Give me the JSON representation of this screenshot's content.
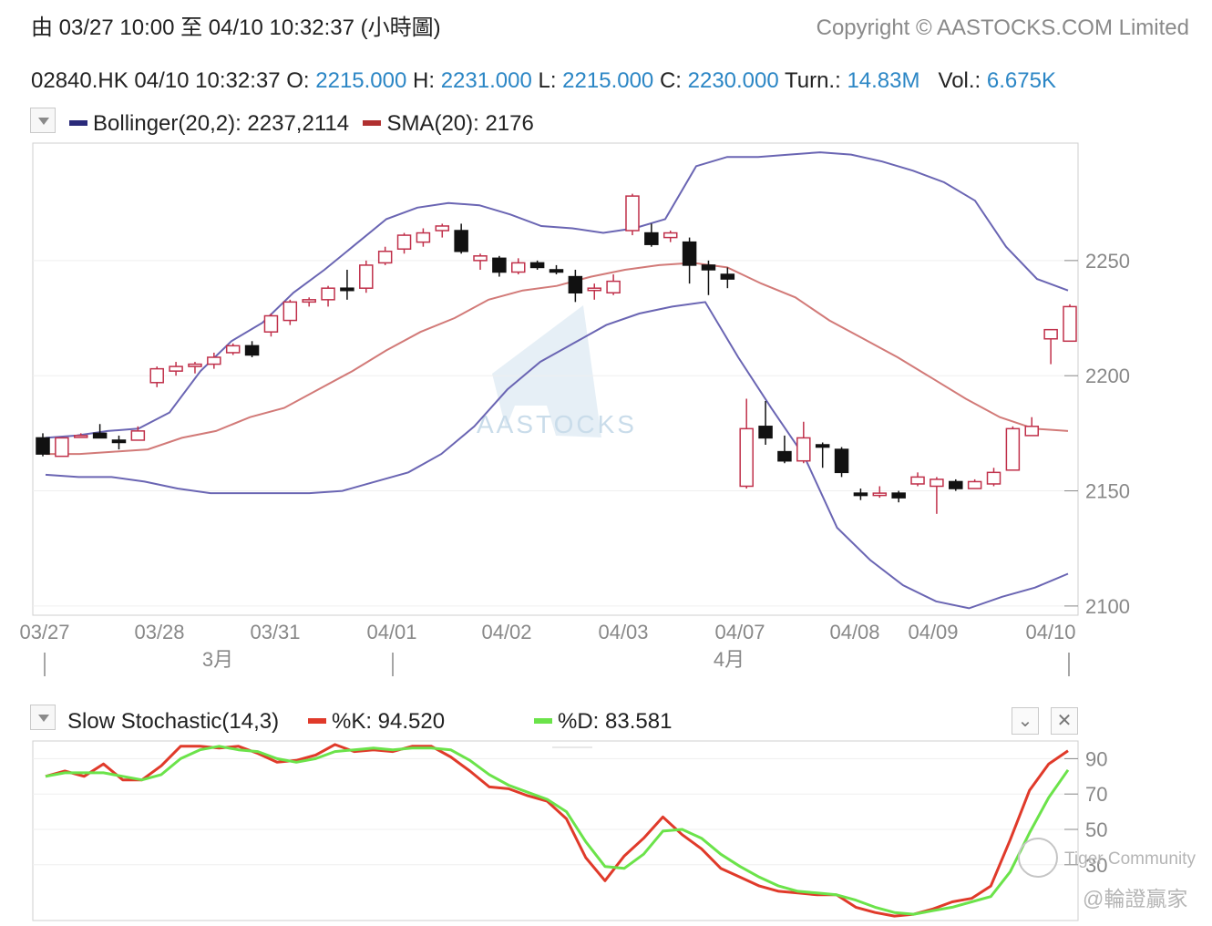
{
  "header": {
    "range_text": "由  03/27 10:00 至  04/10 10:32:37 (小時圖)",
    "copyright": "Copyright © AASTOCKS.COM Limited"
  },
  "quote": {
    "symbol_time": "02840.HK 04/10 10:32:37",
    "open_label": "O:",
    "open": "2215.000",
    "high_label": "H:",
    "high": "2231.000",
    "low_label": "L:",
    "low": "2215.000",
    "close_label": "C:",
    "close": "2230.000",
    "turnover_label": "Turn.:",
    "turnover": "14.83M",
    "volume_label": "Vol.:",
    "volume": "6.675K"
  },
  "price_legend": {
    "bollinger": "Bollinger(20,2): 2237,2114",
    "sma": "SMA(20): 2176"
  },
  "stoch_legend": {
    "title": "Slow Stochastic(14,3)",
    "k": "%K: 94.520",
    "d": "%D: 83.581"
  },
  "colors": {
    "bollinger": "#6a65b3",
    "bollinger_legend": "#2a2a7a",
    "sma": "#d27a78",
    "sma_legend": "#b03030",
    "up_candle": "#c0304a",
    "down_candle": "#111111",
    "stoch_k": "#e03a2a",
    "stoch_d": "#6be34a",
    "quote_value": "#2b86c5",
    "watermark": "#c9dcea"
  },
  "watermarks": {
    "center": "AASTOCKS",
    "tiger": "Tiger Community",
    "tiger2": "@輪證贏家"
  },
  "chart_data": [
    {
      "type": "candlestick",
      "x_tick_labels": [
        "03/27",
        "03/28",
        "03/31",
        "04/01",
        "04/02",
        "04/03",
        "04/07",
        "04/08",
        "04/09",
        "04/10"
      ],
      "month_labels": [
        "3月",
        "4月"
      ],
      "y_ticks": [
        2100,
        2150,
        2200,
        2250
      ],
      "ylim": [
        2096,
        2301
      ],
      "candles": [
        {
          "o": 2173,
          "h": 2175,
          "l": 2165,
          "c": 2166
        },
        {
          "o": 2165,
          "h": 2173,
          "l": 2165,
          "c": 2173
        },
        {
          "o": 2174,
          "h": 2175,
          "l": 2173,
          "c": 2174
        },
        {
          "o": 2175,
          "h": 2179,
          "l": 2173,
          "c": 2173
        },
        {
          "o": 2172,
          "h": 2174,
          "l": 2168,
          "c": 2171
        },
        {
          "o": 2172,
          "h": 2178,
          "l": 2172,
          "c": 2176
        },
        {
          "o": 2197,
          "h": 2204,
          "l": 2195,
          "c": 2203
        },
        {
          "o": 2202,
          "h": 2206,
          "l": 2200,
          "c": 2204
        },
        {
          "o": 2204,
          "h": 2206,
          "l": 2201,
          "c": 2205
        },
        {
          "o": 2205,
          "h": 2210,
          "l": 2203,
          "c": 2208
        },
        {
          "o": 2210,
          "h": 2214,
          "l": 2209,
          "c": 2213
        },
        {
          "o": 2213,
          "h": 2215,
          "l": 2208,
          "c": 2209
        },
        {
          "o": 2219,
          "h": 2227,
          "l": 2217,
          "c": 2226
        },
        {
          "o": 2224,
          "h": 2233,
          "l": 2222,
          "c": 2232
        },
        {
          "o": 2232,
          "h": 2234,
          "l": 2230,
          "c": 2233
        },
        {
          "o": 2233,
          "h": 2239,
          "l": 2230,
          "c": 2238
        },
        {
          "o": 2238,
          "h": 2246,
          "l": 2233,
          "c": 2237
        },
        {
          "o": 2238,
          "h": 2250,
          "l": 2236,
          "c": 2248
        },
        {
          "o": 2249,
          "h": 2256,
          "l": 2248,
          "c": 2254
        },
        {
          "o": 2255,
          "h": 2262,
          "l": 2253,
          "c": 2261
        },
        {
          "o": 2258,
          "h": 2264,
          "l": 2256,
          "c": 2262
        },
        {
          "o": 2263,
          "h": 2266,
          "l": 2260,
          "c": 2265
        },
        {
          "o": 2263,
          "h": 2266,
          "l": 2253,
          "c": 2254
        },
        {
          "o": 2250,
          "h": 2253,
          "l": 2246,
          "c": 2252
        },
        {
          "o": 2251,
          "h": 2252,
          "l": 2243,
          "c": 2245
        },
        {
          "o": 2245,
          "h": 2251,
          "l": 2244,
          "c": 2249
        },
        {
          "o": 2249,
          "h": 2250,
          "l": 2246,
          "c": 2247
        },
        {
          "o": 2246,
          "h": 2248,
          "l": 2244,
          "c": 2245
        },
        {
          "o": 2243,
          "h": 2246,
          "l": 2232,
          "c": 2236
        },
        {
          "o": 2237,
          "h": 2240,
          "l": 2233,
          "c": 2238
        },
        {
          "o": 2236,
          "h": 2244,
          "l": 2235,
          "c": 2241
        },
        {
          "o": 2263,
          "h": 2279,
          "l": 2261,
          "c": 2278
        },
        {
          "o": 2262,
          "h": 2266,
          "l": 2256,
          "c": 2257
        },
        {
          "o": 2260,
          "h": 2263,
          "l": 2258,
          "c": 2262
        },
        {
          "o": 2258,
          "h": 2260,
          "l": 2240,
          "c": 2248
        },
        {
          "o": 2248,
          "h": 2250,
          "l": 2235,
          "c": 2246
        },
        {
          "o": 2244,
          "h": 2247,
          "l": 2238,
          "c": 2242
        },
        {
          "o": 2152,
          "h": 2190,
          "l": 2151,
          "c": 2177
        },
        {
          "o": 2178,
          "h": 2189,
          "l": 2170,
          "c": 2173
        },
        {
          "o": 2167,
          "h": 2174,
          "l": 2162,
          "c": 2163
        },
        {
          "o": 2163,
          "h": 2180,
          "l": 2162,
          "c": 2173
        },
        {
          "o": 2170,
          "h": 2171,
          "l": 2160,
          "c": 2169
        },
        {
          "o": 2168,
          "h": 2169,
          "l": 2156,
          "c": 2158
        },
        {
          "o": 2149,
          "h": 2151,
          "l": 2146,
          "c": 2148
        },
        {
          "o": 2148,
          "h": 2152,
          "l": 2147,
          "c": 2149
        },
        {
          "o": 2149,
          "h": 2150,
          "l": 2145,
          "c": 2147
        },
        {
          "o": 2153,
          "h": 2158,
          "l": 2152,
          "c": 2156
        },
        {
          "o": 2152,
          "h": 2156,
          "l": 2140,
          "c": 2155
        },
        {
          "o": 2154,
          "h": 2155,
          "l": 2150,
          "c": 2151
        },
        {
          "o": 2151,
          "h": 2155,
          "l": 2151,
          "c": 2154
        },
        {
          "o": 2153,
          "h": 2160,
          "l": 2152,
          "c": 2158
        },
        {
          "o": 2159,
          "h": 2178,
          "l": 2159,
          "c": 2177
        },
        {
          "o": 2174,
          "h": 2182,
          "l": 2174,
          "c": 2178
        },
        {
          "o": 2216,
          "h": 2220,
          "l": 2205,
          "c": 2220
        },
        {
          "o": 2215,
          "h": 2231,
          "l": 2215,
          "c": 2230
        }
      ],
      "bollinger_upper": [
        2173,
        2174,
        2176,
        2177,
        2184,
        2202,
        2215,
        2223,
        2236,
        2246,
        2257,
        2268,
        2273,
        2275,
        2274,
        2270,
        2265,
        2264,
        2262,
        2264,
        2268,
        2291,
        2295,
        2295,
        2296,
        2297,
        2296,
        2293,
        2289,
        2284,
        2276,
        2256,
        2242,
        2237
      ],
      "bollinger_middle": [
        2166,
        2166,
        2167,
        2168,
        2173,
        2176,
        2182,
        2186,
        2194,
        2202,
        2211,
        2219,
        2225,
        2233,
        2237,
        2239,
        2243,
        2246,
        2248,
        2249,
        2247,
        2240,
        2234,
        2224,
        2216,
        2208,
        2199,
        2190,
        2182,
        2177,
        2176
      ],
      "bollinger_lower": [
        2157,
        2156,
        2156,
        2154,
        2151,
        2149,
        2149,
        2149,
        2149,
        2150,
        2154,
        2158,
        2166,
        2178,
        2194,
        2206,
        2214,
        2222,
        2227,
        2230,
        2232,
        2208,
        2186,
        2165,
        2134,
        2120,
        2109,
        2102,
        2099,
        2104,
        2108,
        2114
      ],
      "ylabel": "",
      "xlabel": ""
    },
    {
      "type": "line",
      "y_ticks": [
        90,
        70,
        50,
        30
      ],
      "ylim": [
        0,
        100
      ],
      "series": [
        {
          "name": "%K",
          "values": [
            80,
            83,
            80,
            87,
            78,
            78,
            86,
            97,
            97,
            96,
            97,
            93,
            88,
            89,
            92,
            98,
            94,
            95,
            94,
            97,
            97,
            91,
            83,
            74,
            73,
            69,
            66,
            56,
            34,
            21,
            35,
            45,
            57,
            47,
            39,
            28,
            23,
            18,
            15,
            14,
            13,
            13,
            6,
            3,
            1,
            2,
            5,
            9,
            11,
            18,
            44,
            72,
            87,
            94.5
          ]
        },
        {
          "name": "%D",
          "values": [
            80,
            82,
            82,
            82,
            80,
            78,
            81,
            90,
            95,
            97,
            95,
            94,
            90,
            88,
            90,
            94,
            95,
            96,
            95,
            96,
            96,
            95,
            89,
            81,
            75,
            71,
            67,
            60,
            43,
            29,
            28,
            36,
            49,
            50,
            45,
            36,
            29,
            23,
            18,
            15,
            14,
            13,
            10,
            6,
            3,
            2,
            4,
            6,
            9,
            12,
            26,
            48,
            68,
            83.6
          ]
        }
      ]
    }
  ]
}
